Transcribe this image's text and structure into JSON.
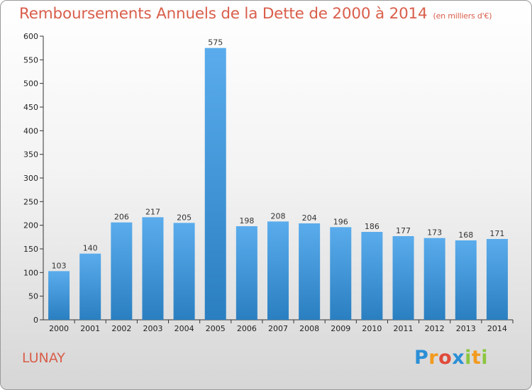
{
  "title": "Remboursements Annuels de la Dette de 2000 à 2014",
  "subtitle": "(en milliers d'€)",
  "commune": "LUNAY",
  "logo": {
    "letters": [
      "P",
      "r",
      "o",
      "x",
      "i",
      "t",
      "i"
    ],
    "colors": [
      "#2b8fd6",
      "#f29a1d",
      "#e04a3a",
      "#2b8fd6",
      "#8cc63f",
      "#f29a1d",
      "#8cc63f"
    ]
  },
  "chart_data": {
    "type": "bar",
    "categories": [
      "2000",
      "2001",
      "2002",
      "2003",
      "2004",
      "2005",
      "2006",
      "2007",
      "2008",
      "2009",
      "2010",
      "2011",
      "2012",
      "2013",
      "2014"
    ],
    "values": [
      103,
      140,
      206,
      217,
      205,
      575,
      198,
      208,
      204,
      196,
      186,
      177,
      173,
      168,
      171
    ],
    "ylim": [
      0,
      600
    ],
    "yticks": [
      0,
      50,
      100,
      150,
      200,
      250,
      300,
      350,
      400,
      450,
      500,
      550,
      600
    ],
    "grid": false,
    "bar_color_top": "#5aacec",
    "bar_color_bottom": "#2a7fc1"
  }
}
